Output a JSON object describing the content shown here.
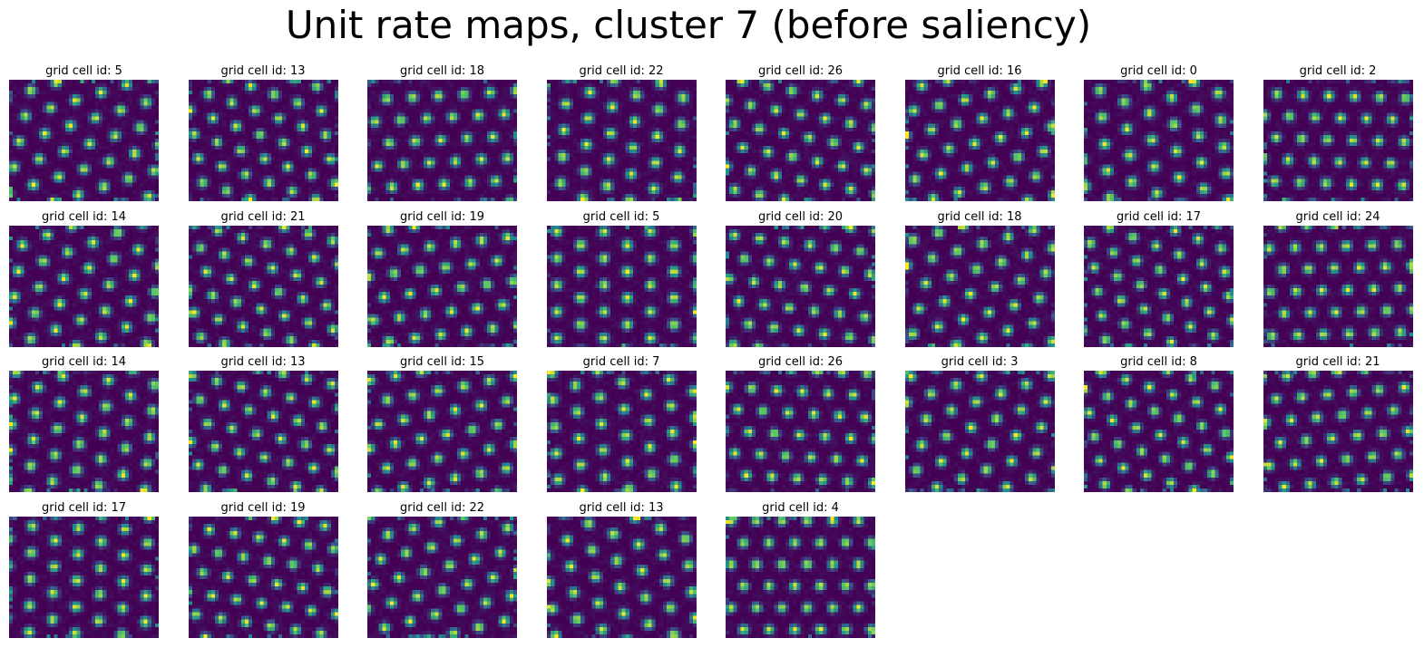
{
  "title": "Unit rate maps, cluster 7 (before saliency)",
  "colormap": "viridis",
  "colors": {
    "low": "#440154",
    "mid": "#21918c",
    "high": "#fde725"
  },
  "grid": {
    "rows": 4,
    "cols": 8
  },
  "chart_data": {
    "type": "heatmap",
    "title": "Unit rate maps, cluster 7 (before saliency)",
    "panels": [
      {
        "title": "grid cell id: 5"
      },
      {
        "title": "grid cell id: 13"
      },
      {
        "title": "grid cell id: 18"
      },
      {
        "title": "grid cell id: 22"
      },
      {
        "title": "grid cell id: 26"
      },
      {
        "title": "grid cell id: 16"
      },
      {
        "title": "grid cell id: 0"
      },
      {
        "title": "grid cell id: 2"
      },
      {
        "title": "grid cell id: 14"
      },
      {
        "title": "grid cell id: 21"
      },
      {
        "title": "grid cell id: 19"
      },
      {
        "title": "grid cell id: 5"
      },
      {
        "title": "grid cell id: 20"
      },
      {
        "title": "grid cell id: 18"
      },
      {
        "title": "grid cell id: 17"
      },
      {
        "title": "grid cell id: 24"
      },
      {
        "title": "grid cell id: 14"
      },
      {
        "title": "grid cell id: 13"
      },
      {
        "title": "grid cell id: 15"
      },
      {
        "title": "grid cell id: 7"
      },
      {
        "title": "grid cell id: 26"
      },
      {
        "title": "grid cell id: 3"
      },
      {
        "title": "grid cell id: 8"
      },
      {
        "title": "grid cell id: 21"
      },
      {
        "title": "grid cell id: 17"
      },
      {
        "title": "grid cell id: 19"
      },
      {
        "title": "grid cell id: 22"
      },
      {
        "title": "grid cell id: 13"
      },
      {
        "title": "grid cell id: 4"
      }
    ],
    "axes": "off"
  }
}
